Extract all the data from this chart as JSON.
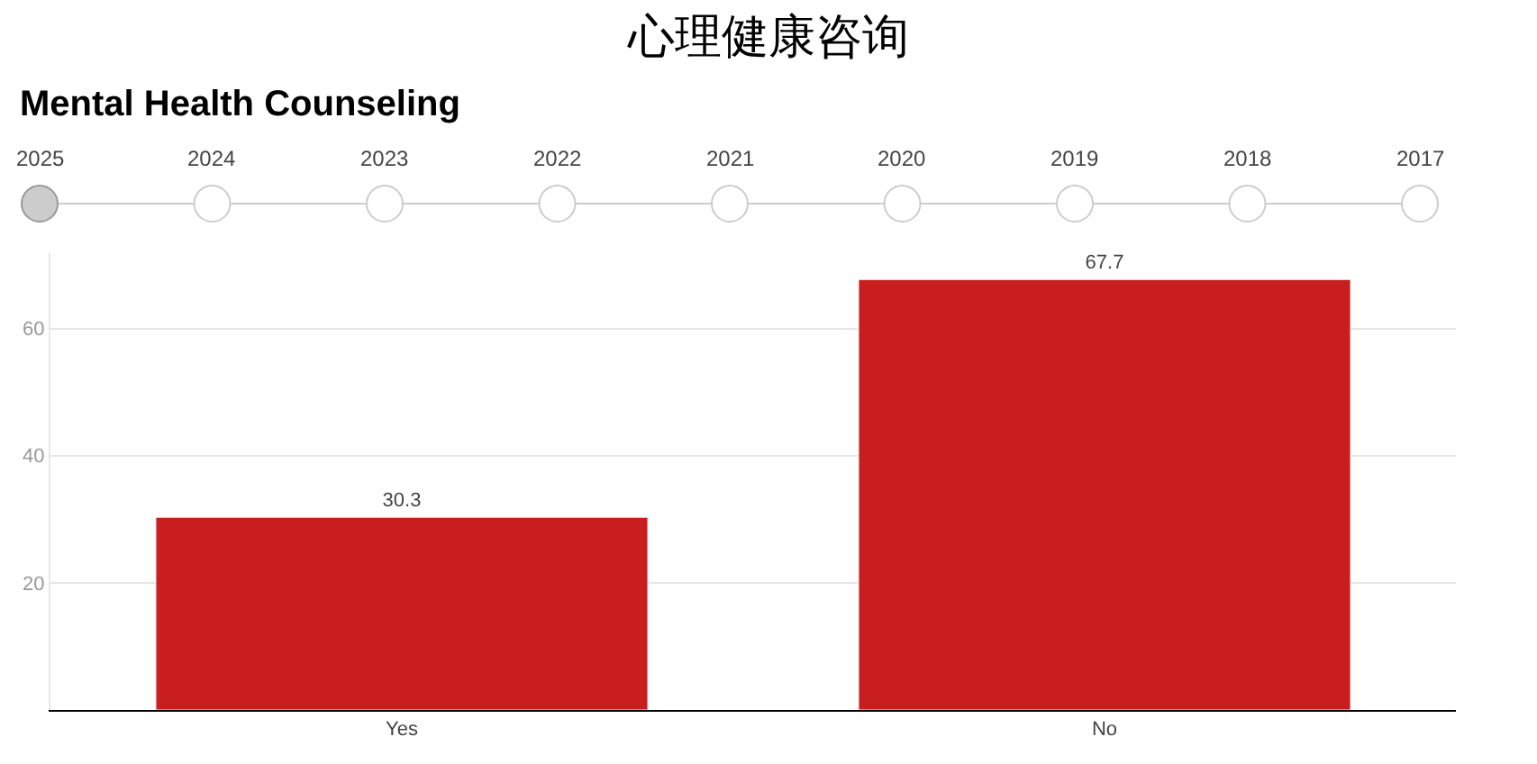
{
  "chart_data": {
    "type": "bar",
    "title": "心理健康咨询",
    "subtitle": "Mental Health Counseling",
    "categories": [
      "Yes",
      "No"
    ],
    "values": [
      30.3,
      67.7
    ],
    "color": "#c81e1e",
    "ylim": [
      0,
      72
    ],
    "yticks": [
      20,
      40,
      60
    ],
    "grid": "y",
    "data_labels": true,
    "annotations": [
      "2025",
      "2024",
      "2023",
      "2022",
      "2021",
      "2020",
      "2019",
      "2018",
      "2017"
    ]
  }
}
